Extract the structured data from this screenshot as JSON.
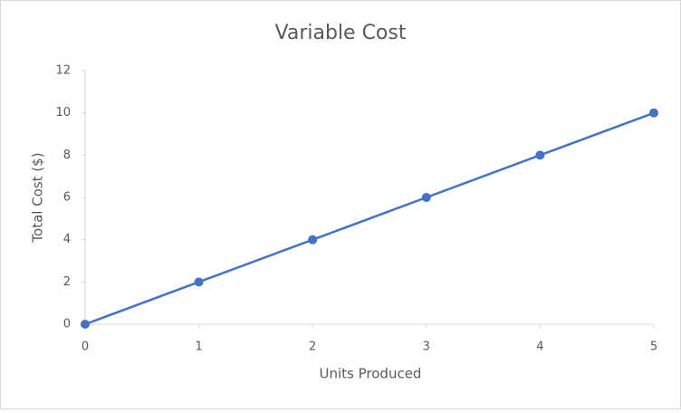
{
  "chart_data": {
    "type": "line",
    "title": "Variable Cost",
    "x_label": "Units Produced",
    "y_label": "Total Cost ($)",
    "x": [
      0,
      1,
      2,
      3,
      4,
      5
    ],
    "series": [
      {
        "name": "Total Cost",
        "color": "#4472c4",
        "values": [
          0,
          2,
          4,
          6,
          8,
          10
        ]
      }
    ],
    "xlim": [
      0,
      5
    ],
    "xticks": [
      0,
      1,
      2,
      3,
      4,
      5
    ],
    "ylim": [
      0,
      12
    ],
    "yticks": [
      0,
      2,
      4,
      6,
      8,
      10,
      12
    ],
    "grid": false,
    "legend": false
  }
}
